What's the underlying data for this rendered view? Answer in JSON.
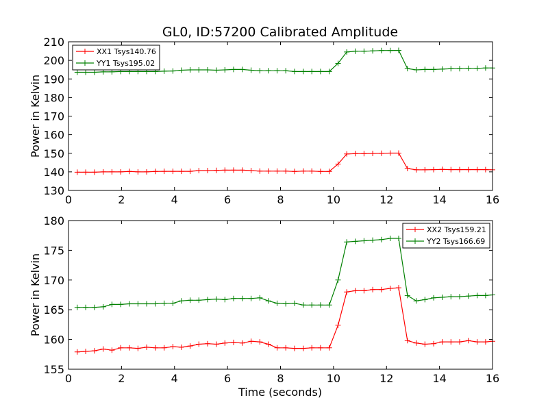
{
  "figure": {
    "title": "GL0, ID:57200 Calibrated Amplitude",
    "xlabel": "Time (seconds)"
  },
  "chart_data": [
    {
      "type": "line",
      "title": "GL0, ID:57200 Calibrated Amplitude",
      "xlabel": "",
      "ylabel": "Power in Kelvin",
      "xlim": [
        0,
        16
      ],
      "ylim": [
        130,
        210
      ],
      "xticks": [
        0,
        2,
        4,
        6,
        8,
        10,
        12,
        14,
        16
      ],
      "yticks": [
        130,
        140,
        150,
        160,
        170,
        180,
        190,
        200,
        210
      ],
      "grid": false,
      "legend": "top-left",
      "x": [
        0.33,
        0.65,
        0.98,
        1.31,
        1.64,
        1.97,
        2.3,
        2.62,
        2.95,
        3.28,
        3.61,
        3.94,
        4.26,
        4.59,
        4.92,
        5.25,
        5.58,
        5.9,
        6.23,
        6.56,
        6.89,
        7.22,
        7.54,
        7.87,
        8.2,
        8.53,
        8.86,
        9.18,
        9.51,
        9.84,
        10.17,
        10.5,
        10.82,
        11.15,
        11.48,
        11.81,
        12.14,
        12.46,
        12.79,
        13.12,
        13.45,
        13.78,
        14.1,
        14.43,
        14.76,
        15.09,
        15.42,
        15.74,
        16.0
      ],
      "series": [
        {
          "name": "XX1 Tsys140.76",
          "color": "#ff0000",
          "values": [
            139.8,
            139.8,
            139.8,
            140.0,
            140.0,
            140.0,
            140.2,
            140.0,
            140.0,
            140.2,
            140.3,
            140.3,
            140.3,
            140.3,
            140.7,
            140.7,
            140.8,
            140.9,
            140.9,
            140.9,
            140.7,
            140.4,
            140.4,
            140.4,
            140.4,
            140.2,
            140.4,
            140.4,
            140.2,
            140.2,
            144.2,
            149.6,
            149.8,
            149.8,
            149.9,
            150.0,
            150.1,
            150.1,
            141.8,
            141.1,
            141.1,
            141.2,
            141.3,
            141.2,
            141.2,
            141.2,
            141.2,
            141.2,
            141.1
          ]
        },
        {
          "name": "YY1 Tsys195.02",
          "color": "#008000",
          "values": [
            193.6,
            193.6,
            193.6,
            193.8,
            193.8,
            194.0,
            194.0,
            194.0,
            194.0,
            194.0,
            194.2,
            194.3,
            194.7,
            194.9,
            194.9,
            194.9,
            194.7,
            194.9,
            195.1,
            195.1,
            194.7,
            194.4,
            194.4,
            194.4,
            194.4,
            194.0,
            194.0,
            194.0,
            194.0,
            194.0,
            198.4,
            204.5,
            204.9,
            204.9,
            205.1,
            205.3,
            205.3,
            205.4,
            195.6,
            194.9,
            195.1,
            195.1,
            195.3,
            195.5,
            195.5,
            195.7,
            195.7,
            195.9,
            195.9
          ]
        }
      ]
    },
    {
      "type": "line",
      "title": "",
      "xlabel": "Time (seconds)",
      "ylabel": "Power in Kelvin",
      "xlim": [
        0,
        16
      ],
      "ylim": [
        155,
        180
      ],
      "xticks": [
        0,
        2,
        4,
        6,
        8,
        10,
        12,
        14,
        16
      ],
      "yticks": [
        155,
        160,
        165,
        170,
        175,
        180
      ],
      "grid": false,
      "legend": "top-right",
      "x": [
        0.33,
        0.65,
        0.98,
        1.31,
        1.64,
        1.97,
        2.3,
        2.62,
        2.95,
        3.28,
        3.61,
        3.94,
        4.26,
        4.59,
        4.92,
        5.25,
        5.58,
        5.9,
        6.23,
        6.56,
        6.89,
        7.22,
        7.54,
        7.87,
        8.2,
        8.53,
        8.86,
        9.18,
        9.51,
        9.84,
        10.17,
        10.5,
        10.82,
        11.15,
        11.48,
        11.81,
        12.14,
        12.46,
        12.79,
        13.12,
        13.45,
        13.78,
        14.1,
        14.43,
        14.76,
        15.09,
        15.42,
        15.74,
        16.0
      ],
      "series": [
        {
          "name": "XX2 Tsys159.21",
          "color": "#ff0000",
          "values": [
            157.9,
            158.0,
            158.1,
            158.4,
            158.2,
            158.6,
            158.6,
            158.5,
            158.7,
            158.6,
            158.6,
            158.8,
            158.7,
            158.9,
            159.2,
            159.3,
            159.2,
            159.4,
            159.5,
            159.4,
            159.7,
            159.6,
            159.2,
            158.6,
            158.6,
            158.5,
            158.5,
            158.6,
            158.6,
            158.6,
            162.4,
            168.0,
            168.2,
            168.2,
            168.4,
            168.4,
            168.6,
            168.7,
            159.8,
            159.4,
            159.2,
            159.3,
            159.6,
            159.6,
            159.6,
            159.8,
            159.6,
            159.6,
            159.7
          ]
        },
        {
          "name": "YY2 Tsys166.69",
          "color": "#008000",
          "values": [
            165.4,
            165.4,
            165.4,
            165.5,
            165.9,
            165.9,
            166.0,
            166.0,
            166.0,
            166.0,
            166.1,
            166.1,
            166.5,
            166.6,
            166.6,
            166.7,
            166.8,
            166.7,
            166.9,
            166.9,
            166.9,
            167.0,
            166.5,
            166.1,
            166.0,
            166.1,
            165.8,
            165.8,
            165.8,
            165.8,
            170.0,
            176.4,
            176.5,
            176.6,
            176.7,
            176.8,
            177.0,
            177.0,
            167.4,
            166.5,
            166.7,
            167.0,
            167.1,
            167.2,
            167.2,
            167.3,
            167.4,
            167.4,
            167.5
          ]
        }
      ]
    }
  ]
}
